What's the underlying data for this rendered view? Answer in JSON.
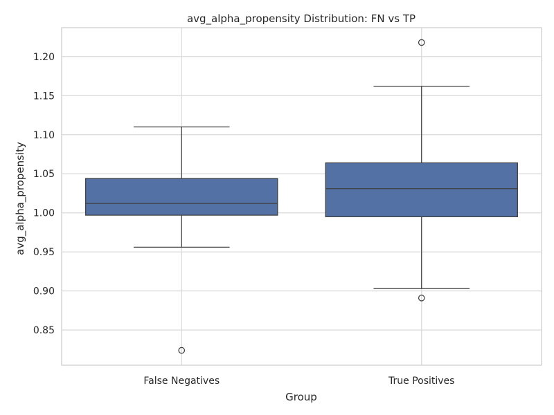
{
  "chart_data": {
    "type": "box",
    "title": "avg_alpha_propensity Distribution: FN vs TP",
    "xlabel": "Group",
    "ylabel": "avg_alpha_propensity",
    "ylim": [
      0.805,
      1.237
    ],
    "yticks": [
      0.85,
      0.9,
      0.95,
      1.0,
      1.05,
      1.1,
      1.15,
      1.2
    ],
    "ytick_labels": [
      "0.85",
      "0.90",
      "0.95",
      "1.00",
      "1.05",
      "1.10",
      "1.15",
      "1.20"
    ],
    "grid": true,
    "colors": {
      "box_fill": "#5471a5",
      "line": "#3f3f3f",
      "grid": "#d9d9d9",
      "spine": "#cccccc"
    },
    "categories": [
      "False Negatives",
      "True Positives"
    ],
    "boxes": [
      {
        "category": "False Negatives",
        "whisker_low": 0.956,
        "q1": 0.997,
        "median": 1.012,
        "q3": 1.044,
        "whisker_high": 1.11,
        "outliers": [
          0.824
        ]
      },
      {
        "category": "True Positives",
        "whisker_low": 0.903,
        "q1": 0.995,
        "median": 1.031,
        "q3": 1.064,
        "whisker_high": 1.162,
        "outliers": [
          1.218,
          0.891
        ]
      }
    ]
  }
}
